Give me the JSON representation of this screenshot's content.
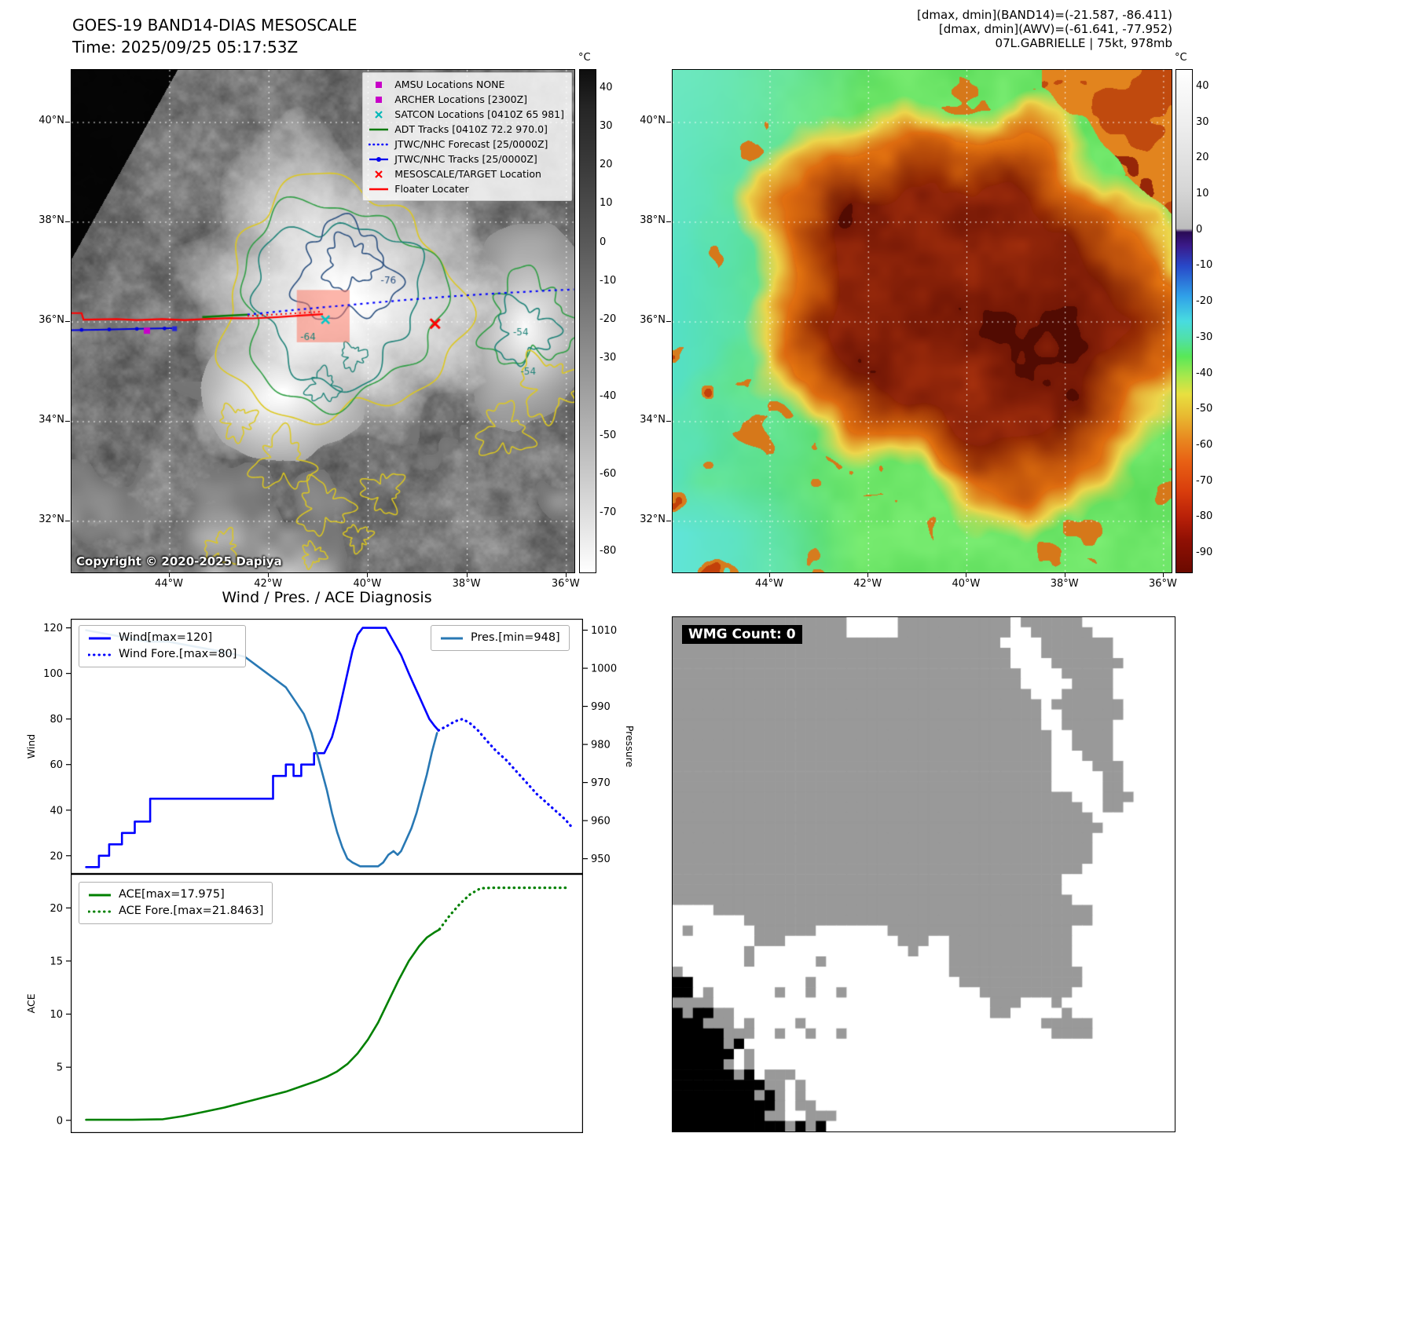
{
  "band14": {
    "title": "GOES-19 BAND14-DIAS MESOSCALE",
    "time_line": "Time: 2025/09/25 05:17:53Z",
    "copyright": "Copyright © 2020-2025 Dapiya",
    "lat_ticks": [
      "40°N",
      "38°N",
      "36°N",
      "34°N",
      "32°N"
    ],
    "lon_ticks": [
      "44°W",
      "42°W",
      "40°W",
      "38°W",
      "36°W"
    ],
    "colorbar": {
      "unit": "°C",
      "ticks": [
        "40",
        "30",
        "20",
        "10",
        "0",
        "-10",
        "-20",
        "-30",
        "-40",
        "-50",
        "-60",
        "-70",
        "-80"
      ]
    },
    "contour_labels": [
      "-76",
      "-64",
      "-54",
      "-54"
    ],
    "legend": [
      {
        "label": "AMSU Locations NONE",
        "marker": "square",
        "color": "#c800c8"
      },
      {
        "label": "ARCHER Locations [2300Z]",
        "marker": "square",
        "color": "#c800c8"
      },
      {
        "label": "SATCON Locations [0410Z 65 981]",
        "marker": "x",
        "color": "#00b8b8"
      },
      {
        "label": "ADT Tracks [0410Z 72.2 970.0]",
        "marker": "line",
        "color": "#0a7a0a"
      },
      {
        "label": "JTWC/NHC Forecast [25/0000Z]",
        "marker": "dotted",
        "color": "#0000ff"
      },
      {
        "label": "JTWC/NHC Tracks [25/0000Z]",
        "marker": "line-dot",
        "color": "#0000ee"
      },
      {
        "label": "MESOSCALE/TARGET Location",
        "marker": "x",
        "color": "#ff0000"
      },
      {
        "label": "Floater Locater",
        "marker": "line",
        "color": "#ff0000"
      }
    ],
    "target_box_color": "#fa7864"
  },
  "awv": {
    "header_lines": [
      "[dmax, dmin](BAND14)=(-21.587, -86.411)",
      "[dmax, dmin](AWV)=(-61.641, -77.952)",
      "07L.GABRIELLE | 75kt, 978mb"
    ],
    "lat_ticks": [
      "40°N",
      "38°N",
      "36°N",
      "34°N",
      "32°N"
    ],
    "lon_ticks": [
      "44°W",
      "42°W",
      "40°W",
      "38°W",
      "36°W"
    ],
    "colorbar": {
      "unit": "°C",
      "ticks": [
        "40",
        "30",
        "20",
        "10",
        "0",
        "-10",
        "-20",
        "-30",
        "-40",
        "-50",
        "-60",
        "-70",
        "-80",
        "-90"
      ]
    }
  },
  "diagnosis": {
    "title": "Wind / Pres. / ACE Diagnosis"
  },
  "wmg": {
    "label": "WMG Count: 0"
  },
  "chart_data": [
    {
      "type": "line",
      "title": "Wind / Pres. / ACE Diagnosis",
      "panel": "wind-pressure",
      "x_range": [
        0,
        100
      ],
      "grid": false,
      "left_axis": {
        "label": "Wind",
        "range": [
          12,
          124
        ],
        "ticks": [
          20,
          40,
          60,
          80,
          100,
          120
        ]
      },
      "right_axis": {
        "label": "Pressure",
        "range": [
          946,
          1013
        ],
        "ticks": [
          950,
          960,
          970,
          980,
          990,
          1000,
          1010
        ]
      },
      "series": [
        {
          "name": "Wind[max=120]",
          "axis": "left",
          "style": "solid",
          "color": "#0000ff",
          "points": [
            [
              3,
              15
            ],
            [
              5.5,
              15
            ],
            [
              5.5,
              20
            ],
            [
              7.5,
              20
            ],
            [
              7.5,
              25
            ],
            [
              10,
              25
            ],
            [
              10,
              30
            ],
            [
              12.5,
              30
            ],
            [
              12.5,
              35
            ],
            [
              15.5,
              35
            ],
            [
              15.5,
              45
            ],
            [
              39.5,
              45
            ],
            [
              39.5,
              55
            ],
            [
              42,
              55
            ],
            [
              42,
              60
            ],
            [
              43.5,
              60
            ],
            [
              43.5,
              55
            ],
            [
              45,
              55
            ],
            [
              45,
              60
            ],
            [
              47.5,
              60
            ],
            [
              47.5,
              65
            ],
            [
              49.5,
              65
            ],
            [
              51,
              72
            ],
            [
              52,
              80
            ],
            [
              53,
              90
            ],
            [
              54,
              100
            ],
            [
              55,
              110
            ],
            [
              56,
              117
            ],
            [
              57,
              120
            ],
            [
              61.5,
              120
            ],
            [
              63,
              114
            ],
            [
              64.5,
              108
            ],
            [
              66,
              100
            ],
            [
              67,
              95
            ],
            [
              68,
              90
            ],
            [
              69,
              85
            ],
            [
              70,
              80
            ],
            [
              71,
              77
            ],
            [
              71.8,
              75
            ]
          ]
        },
        {
          "name": "Wind Fore.[max=80]",
          "axis": "left",
          "style": "dotted",
          "color": "#0000ff",
          "points": [
            [
              71.8,
              75
            ],
            [
              73.5,
              77
            ],
            [
              75,
              79
            ],
            [
              76.5,
              80
            ],
            [
              78,
              78
            ],
            [
              79.5,
              75
            ],
            [
              81,
              71
            ],
            [
              83,
              66
            ],
            [
              85,
              62
            ],
            [
              87,
              57
            ],
            [
              89,
              52
            ],
            [
              91,
              47
            ],
            [
              93,
              43
            ],
            [
              95,
              39
            ],
            [
              96.5,
              36
            ],
            [
              98,
              32
            ]
          ]
        },
        {
          "name": "Pres.[min=948]",
          "axis": "right",
          "style": "solid",
          "color": "#2878b4",
          "points": [
            [
              3,
              1010
            ],
            [
              7,
              1009
            ],
            [
              11,
              1008
            ],
            [
              15,
              1007
            ],
            [
              19,
              1007
            ],
            [
              23,
              1006
            ],
            [
              27,
              1005
            ],
            [
              31,
              1004
            ],
            [
              34,
              1003
            ],
            [
              36,
              1001
            ],
            [
              38,
              999
            ],
            [
              40,
              997
            ],
            [
              42,
              995
            ],
            [
              44,
              991
            ],
            [
              45.5,
              988
            ],
            [
              47,
              983
            ],
            [
              48,
              978
            ],
            [
              49,
              973
            ],
            [
              50,
              968
            ],
            [
              51,
              962
            ],
            [
              52,
              957
            ],
            [
              53,
              953
            ],
            [
              54,
              950
            ],
            [
              55,
              949
            ],
            [
              56.5,
              948
            ],
            [
              58.5,
              948
            ],
            [
              60,
              948
            ],
            [
              61,
              949
            ],
            [
              62,
              951
            ],
            [
              63,
              952
            ],
            [
              63.8,
              951
            ],
            [
              64.5,
              952
            ],
            [
              65.5,
              955
            ],
            [
              66.5,
              958
            ],
            [
              67.5,
              962
            ],
            [
              68.5,
              967
            ],
            [
              69.5,
              972
            ],
            [
              70.5,
              978
            ],
            [
              71.5,
              983
            ]
          ]
        }
      ]
    },
    {
      "type": "line",
      "panel": "ace",
      "x_range": [
        0,
        100
      ],
      "grid": false,
      "left_axis": {
        "label": "ACE",
        "range": [
          -1.2,
          23.2
        ],
        "ticks": [
          0,
          5,
          10,
          15,
          20
        ]
      },
      "series": [
        {
          "name": "ACE[max=17.975]",
          "axis": "left",
          "style": "solid",
          "color": "#008000",
          "points": [
            [
              3,
              0.05
            ],
            [
              12,
              0.05
            ],
            [
              18,
              0.1
            ],
            [
              22,
              0.4
            ],
            [
              26,
              0.8
            ],
            [
              30,
              1.2
            ],
            [
              34,
              1.7
            ],
            [
              38,
              2.2
            ],
            [
              42,
              2.7
            ],
            [
              45,
              3.2
            ],
            [
              48,
              3.7
            ],
            [
              50,
              4.1
            ],
            [
              52,
              4.6
            ],
            [
              54,
              5.3
            ],
            [
              56,
              6.3
            ],
            [
              58,
              7.6
            ],
            [
              60,
              9.2
            ],
            [
              62,
              11.2
            ],
            [
              64,
              13.2
            ],
            [
              66,
              15
            ],
            [
              68,
              16.4
            ],
            [
              69.5,
              17.2
            ],
            [
              71,
              17.7
            ],
            [
              72,
              17.975
            ]
          ]
        },
        {
          "name": "ACE Fore.[max=21.8463]",
          "axis": "left",
          "style": "dotted",
          "color": "#008000",
          "points": [
            [
              72,
              18
            ],
            [
              74,
              19.3
            ],
            [
              76,
              20.4
            ],
            [
              78,
              21.3
            ],
            [
              80,
              21.85
            ],
            [
              82.5,
              21.9
            ],
            [
              85,
              21.9
            ],
            [
              88,
              21.9
            ],
            [
              91,
              21.9
            ],
            [
              94,
              21.9
            ],
            [
              97,
              21.9
            ]
          ]
        }
      ]
    }
  ]
}
